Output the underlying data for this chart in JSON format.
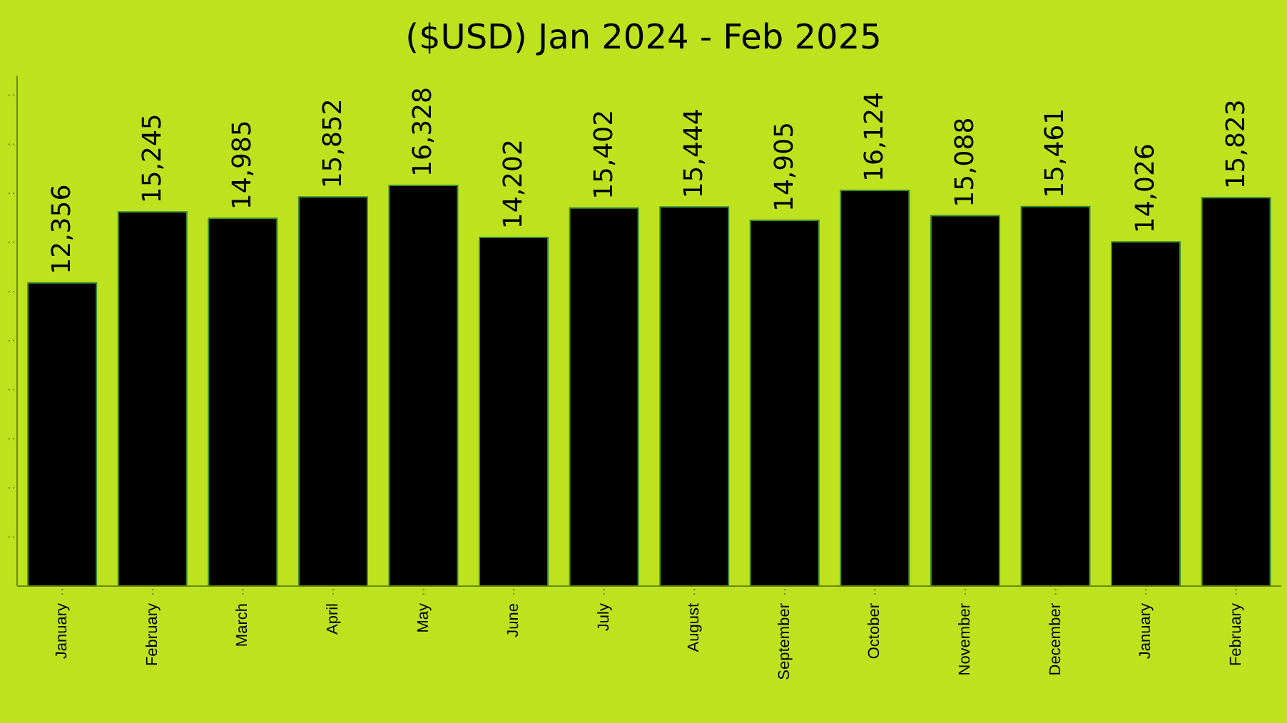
{
  "chart_data": {
    "type": "bar",
    "title": "($USD) Jan 2024 - Feb 2025",
    "categories": [
      "January",
      "February",
      "March",
      "April",
      "May",
      "June",
      "July",
      "August",
      "September",
      "October",
      "November",
      "December",
      "January",
      "February"
    ],
    "values": [
      12356,
      15245,
      14985,
      15852,
      16328,
      14202,
      15402,
      15444,
      14905,
      16124,
      15088,
      15461,
      14026,
      15823
    ],
    "value_labels": [
      "12,356",
      "15,245",
      "14,985",
      "15,852",
      "16,328",
      "14,202",
      "15,402",
      "15,444",
      "14,905",
      "16,124",
      "15,088",
      "15,461",
      "14,026",
      "15,823"
    ],
    "color": "#000000",
    "ylim": [
      0,
      20800
    ],
    "yticks": [
      {
        "value": 2000,
        "label": null
      },
      {
        "value": 4000,
        "label": null
      },
      {
        "value": 6000,
        "label": null
      },
      {
        "value": 8000,
        "label": null
      },
      {
        "value": 10000,
        "label": null
      },
      {
        "value": 12000,
        "label": null
      },
      {
        "value": 14000,
        "label": null
      },
      {
        "value": 16000,
        "label": null
      },
      {
        "value": 18000,
        "label": null
      },
      {
        "value": 20000,
        "label": null
      }
    ],
    "tick_labels": "x",
    "grid": false,
    "legend": false
  }
}
